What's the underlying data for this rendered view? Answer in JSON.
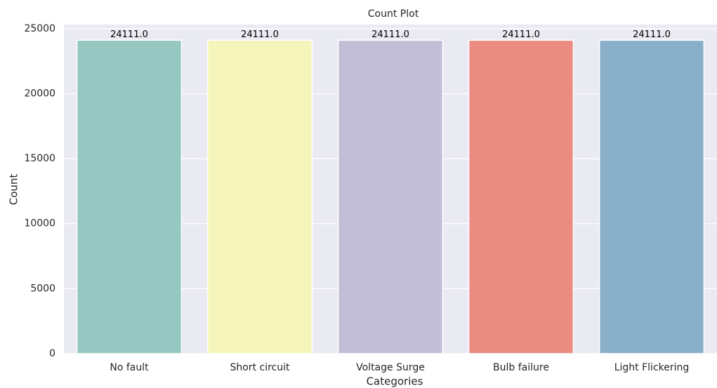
{
  "chart_data": {
    "type": "bar",
    "title": "Count Plot",
    "x_label": "Categories",
    "y_label": "Count",
    "categories": [
      "No fault",
      "Short circuit",
      "Voltage Surge",
      "Bulb failure",
      "Light Flickering"
    ],
    "values": [
      24111,
      24111,
      24111,
      24111,
      24111
    ],
    "value_labels": [
      "24111.0",
      "24111.0",
      "24111.0",
      "24111.0",
      "24111.0"
    ],
    "colors": [
      "#96c7c0",
      "#f5f5bb",
      "#c1bed6",
      "#ea8c82",
      "#8aafc9"
    ],
    "ylim": [
      0,
      25316.55
    ],
    "yticks": [
      0,
      5000,
      10000,
      15000,
      20000,
      25000
    ],
    "grid": true
  }
}
